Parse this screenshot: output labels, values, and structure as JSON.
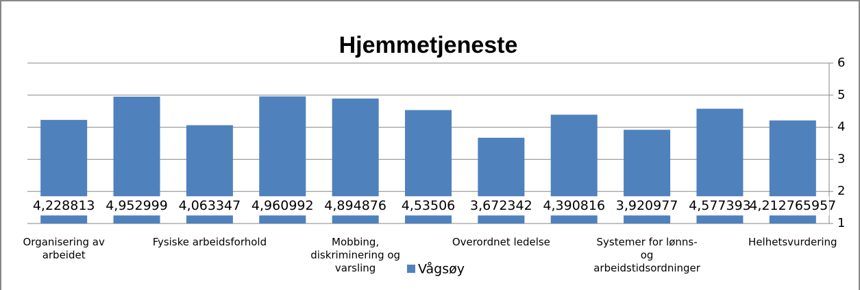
{
  "chart_data": {
    "type": "bar",
    "title": "Hjemmetjeneste",
    "categories": [
      "Organisering av arbeidet",
      null,
      "Fysiske arbeidsforhold",
      null,
      "Mobbing, diskriminering og varsling",
      null,
      "Overordnet ledelse",
      null,
      "Systemer for lønns- og arbeidstidsordninger",
      null,
      "Helhetsvurdering"
    ],
    "series": [
      {
        "name": "Vågsøy",
        "color": "#4f81bd",
        "values": [
          4.228813,
          4.952999,
          4.063347,
          4.960992,
          4.894876,
          4.53506,
          3.672342,
          4.390816,
          3.920977,
          4.577393,
          4.212765957
        ],
        "value_labels": [
          "4,228813",
          "4,952999",
          "4,063347",
          "4,960992",
          "4,894876",
          "4,53506",
          "3,672342",
          "4,390816",
          "3,920977",
          "4,577393",
          "4,212765957"
        ]
      }
    ],
    "ylim": [
      1,
      6
    ],
    "yticks": [
      1,
      2,
      3,
      4,
      5,
      6
    ],
    "grid": true,
    "legend": "bottom"
  }
}
